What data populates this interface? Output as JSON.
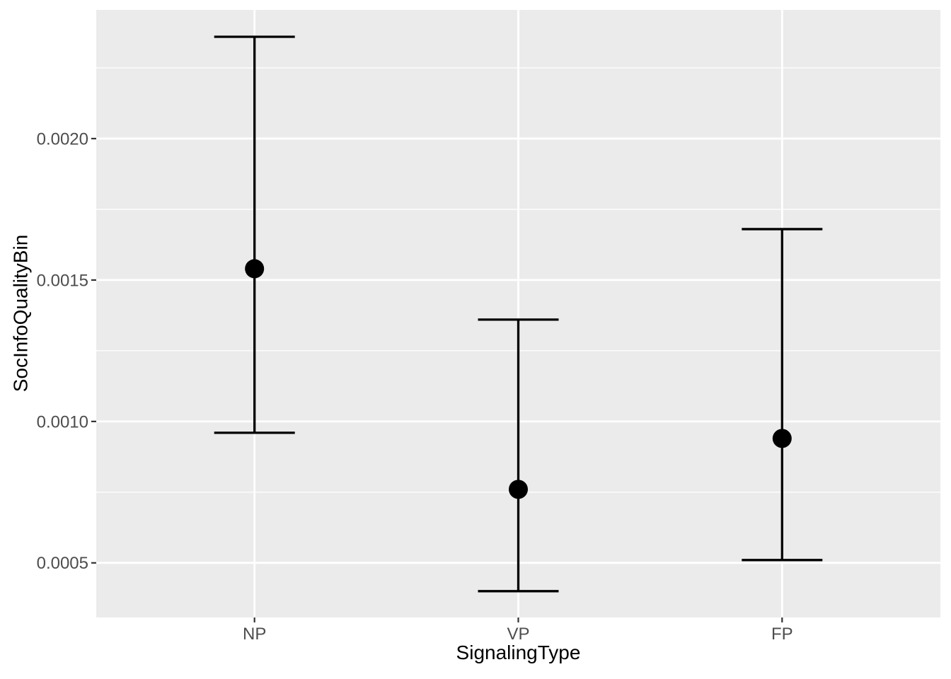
{
  "chart_data": {
    "type": "scatter",
    "subtype": "pointrange-errorbar",
    "title": "",
    "xlabel": "SignalingType",
    "ylabel": "SocInfoQualityBin",
    "categories": [
      "NP",
      "VP",
      "FP"
    ],
    "series": [
      {
        "name": "mean-with-error-bars",
        "points": [
          {
            "x": "NP",
            "y": 0.00154,
            "ymin": 0.00096,
            "ymax": 0.00236
          },
          {
            "x": "VP",
            "y": 0.00076,
            "ymin": 0.0004,
            "ymax": 0.00136
          },
          {
            "x": "FP",
            "y": 0.00094,
            "ymin": 0.00051,
            "ymax": 0.00168
          }
        ]
      }
    ],
    "ylim": [
      0.000307,
      0.002455
    ],
    "y_ticks": [
      {
        "value": 0.0005,
        "label": "0.0005"
      },
      {
        "value": 0.001,
        "label": "0.0010"
      },
      {
        "value": 0.0015,
        "label": "0.0015"
      },
      {
        "value": 0.002,
        "label": "0.0020"
      }
    ],
    "grid": {
      "major": true,
      "minor": true
    },
    "legend": "none",
    "theme": {
      "panel_background": "#EBEBEB",
      "grid_color": "#FFFFFF",
      "tick_label_color": "#4D4D4D",
      "tick_mark_color": "#333333",
      "axis_title_color": "#000000",
      "data_color": "#000000"
    }
  }
}
